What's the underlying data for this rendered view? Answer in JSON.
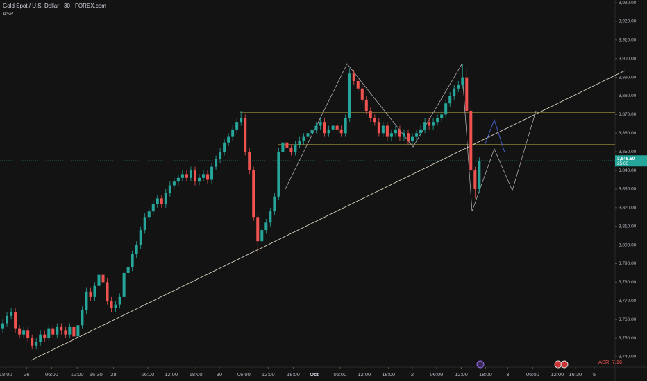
{
  "chart_data": {
    "type": "candlestick",
    "title": "Gold Spot / U.S. Dollar · 30 · FOREX.com",
    "indicator": "ASR",
    "indicator_value": {
      "value": 7.16,
      "label": "ASR: 7.16"
    },
    "last_price": {
      "value": 3845.5,
      "label": "3,845.50"
    },
    "countdown": "25:05",
    "up_color": "#26a69a",
    "down_color": "#ef5350",
    "open": [
      3755,
      3758,
      3762,
      3764,
      3755,
      3752,
      3754,
      3750,
      3746,
      3748,
      3752,
      3750,
      3755,
      3752,
      3756,
      3754,
      3752,
      3756,
      3751,
      3757,
      3765,
      3775,
      3772,
      3778,
      3784,
      3780,
      3770,
      3766,
      3768,
      3772,
      3785,
      3788,
      3795,
      3800,
      3808,
      3815,
      3818,
      3822,
      3825,
      3822,
      3828,
      3832,
      3834,
      3836,
      3838,
      3836,
      3840,
      3834,
      3836,
      3838,
      3835,
      3842,
      3846,
      3850,
      3855,
      3858,
      3862,
      3866,
      3868,
      3850,
      3840,
      3815,
      3802,
      3808,
      3812,
      3818,
      3826,
      3850,
      3855,
      3852,
      3850,
      3854,
      3856,
      3858,
      3860,
      3862,
      3864,
      3866,
      3860,
      3862,
      3864,
      3862,
      3860,
      3868,
      3892,
      3888,
      3884,
      3878,
      3872,
      3868,
      3866,
      3860,
      3864,
      3858,
      3860,
      3862,
      3858,
      3860,
      3856,
      3858,
      3860,
      3862,
      3866,
      3864,
      3866,
      3868,
      3870,
      3876,
      3880,
      3884,
      3886,
      3890,
      3872,
      3840,
      3830
    ],
    "high": [
      3760,
      3764,
      3766,
      3766,
      3757,
      3756,
      3756,
      3752,
      3750,
      3754,
      3754,
      3757,
      3757,
      3758,
      3758,
      3756,
      3758,
      3758,
      3759,
      3767,
      3777,
      3777,
      3780,
      3787,
      3786,
      3782,
      3772,
      3770,
      3774,
      3787,
      3790,
      3797,
      3802,
      3810,
      3817,
      3820,
      3824,
      3827,
      3827,
      3830,
      3834,
      3836,
      3838,
      3840,
      3840,
      3842,
      3842,
      3838,
      3840,
      3840,
      3844,
      3848,
      3852,
      3857,
      3860,
      3864,
      3868,
      3872,
      3870,
      3852,
      3842,
      3817,
      3810,
      3814,
      3820,
      3828,
      3852,
      3857,
      3857,
      3854,
      3856,
      3858,
      3860,
      3862,
      3864,
      3866,
      3868,
      3868,
      3864,
      3866,
      3866,
      3864,
      3870,
      3895,
      3894,
      3890,
      3886,
      3880,
      3874,
      3870,
      3868,
      3866,
      3866,
      3862,
      3864,
      3864,
      3862,
      3862,
      3860,
      3862,
      3864,
      3868,
      3868,
      3868,
      3870,
      3872,
      3878,
      3882,
      3886,
      3888,
      3897,
      3895,
      3874,
      3842,
      3847
    ],
    "low": [
      3753,
      3756,
      3760,
      3753,
      3750,
      3750,
      3748,
      3744,
      3744,
      3746,
      3748,
      3748,
      3750,
      3750,
      3752,
      3750,
      3750,
      3749,
      3749,
      3755,
      3763,
      3770,
      3770,
      3776,
      3778,
      3768,
      3764,
      3764,
      3766,
      3770,
      3783,
      3786,
      3793,
      3798,
      3806,
      3813,
      3816,
      3820,
      3820,
      3820,
      3826,
      3830,
      3832,
      3834,
      3834,
      3834,
      3832,
      3832,
      3834,
      3833,
      3833,
      3840,
      3844,
      3848,
      3853,
      3856,
      3860,
      3864,
      3848,
      3838,
      3813,
      3795,
      3800,
      3806,
      3810,
      3816,
      3824,
      3848,
      3850,
      3848,
      3848,
      3852,
      3854,
      3856,
      3858,
      3860,
      3862,
      3858,
      3858,
      3860,
      3860,
      3858,
      3858,
      3866,
      3886,
      3882,
      3876,
      3870,
      3866,
      3864,
      3858,
      3858,
      3856,
      3856,
      3858,
      3856,
      3856,
      3854,
      3854,
      3856,
      3858,
      3860,
      3862,
      3862,
      3864,
      3866,
      3868,
      3874,
      3878,
      3882,
      3884,
      3870,
      3838,
      3825,
      3828
    ],
    "close": [
      3758,
      3762,
      3764,
      3755,
      3752,
      3754,
      3750,
      3746,
      3748,
      3752,
      3750,
      3755,
      3752,
      3756,
      3754,
      3752,
      3756,
      3751,
      3757,
      3765,
      3775,
      3772,
      3778,
      3784,
      3780,
      3770,
      3766,
      3768,
      3772,
      3785,
      3788,
      3795,
      3800,
      3808,
      3815,
      3818,
      3822,
      3825,
      3822,
      3828,
      3832,
      3834,
      3836,
      3838,
      3836,
      3840,
      3834,
      3836,
      3838,
      3835,
      3842,
      3846,
      3850,
      3855,
      3858,
      3862,
      3866,
      3868,
      3850,
      3840,
      3815,
      3802,
      3808,
      3812,
      3818,
      3826,
      3850,
      3855,
      3852,
      3850,
      3854,
      3856,
      3858,
      3860,
      3862,
      3864,
      3866,
      3860,
      3862,
      3864,
      3862,
      3860,
      3868,
      3892,
      3888,
      3884,
      3878,
      3872,
      3868,
      3866,
      3860,
      3864,
      3858,
      3860,
      3862,
      3858,
      3860,
      3856,
      3858,
      3860,
      3862,
      3866,
      3864,
      3866,
      3868,
      3870,
      3876,
      3880,
      3884,
      3886,
      3890,
      3872,
      3840,
      3830,
      3845
    ],
    "xlim": [
      -0.67,
      146.5
    ],
    "xticks": [
      {
        "value": 0.7,
        "label": "18:00"
      },
      {
        "value": 5.7,
        "label": "26"
      },
      {
        "value": 11.7,
        "label": "06:00"
      },
      {
        "value": 17.8,
        "label": "12:00"
      },
      {
        "value": 22.3,
        "label": "16:30"
      },
      {
        "value": 26.5,
        "label": "28"
      },
      {
        "value": 34.7,
        "label": "06:00"
      },
      {
        "value": 40.3,
        "label": "12:00"
      },
      {
        "value": 46.2,
        "label": "18:00"
      },
      {
        "value": 51.8,
        "label": "30"
      },
      {
        "value": 57.7,
        "label": "06:00"
      },
      {
        "value": 63.5,
        "label": "12:00"
      },
      {
        "value": 69.5,
        "label": "18:00"
      },
      {
        "value": 74.5,
        "label": "Oct"
      },
      {
        "value": 80.7,
        "label": "06:00"
      },
      {
        "value": 86.5,
        "label": "12:00"
      },
      {
        "value": 92.3,
        "label": "18:00"
      },
      {
        "value": 98,
        "label": "2"
      },
      {
        "value": 103.8,
        "label": "06:00"
      },
      {
        "value": 109.7,
        "label": "12:00"
      },
      {
        "value": 115.5,
        "label": "18:00"
      },
      {
        "value": 120.8,
        "label": "3"
      },
      {
        "value": 126.8,
        "label": "06:00"
      },
      {
        "value": 132.7,
        "label": "12:00"
      },
      {
        "value": 137,
        "label": "16:30"
      },
      {
        "value": 141.5,
        "label": "5"
      }
    ],
    "ylim": [
      3734.4,
      3931.5
    ],
    "yticks": [
      {
        "value": 3930,
        "label": "3,930.00"
      },
      {
        "value": 3920,
        "label": "3,920.00"
      },
      {
        "value": 3910,
        "label": "3,910.00"
      },
      {
        "value": 3900,
        "label": "3,900.00"
      },
      {
        "value": 3890,
        "label": "3,890.00"
      },
      {
        "value": 3880,
        "label": "3,880.00"
      },
      {
        "value": 3870,
        "label": "3,870.00"
      },
      {
        "value": 3860,
        "label": "3,860.00"
      },
      {
        "value": 3850,
        "label": "3,850.00"
      },
      {
        "value": 3840,
        "label": "3,840.00"
      },
      {
        "value": 3830,
        "label": "3,830.00"
      },
      {
        "value": 3820,
        "label": "3,820.00"
      },
      {
        "value": 3810,
        "label": "3,810.00"
      },
      {
        "value": 3800,
        "label": "3,800.00"
      },
      {
        "value": 3790,
        "label": "3,790.00"
      },
      {
        "value": 3780,
        "label": "3,780.00"
      },
      {
        "value": 3770,
        "label": "3,770.00"
      },
      {
        "value": 3760,
        "label": "3,760.00"
      },
      {
        "value": 3750,
        "label": "3,750.00"
      },
      {
        "value": 3740,
        "label": "3,740.00"
      }
    ]
  }
}
